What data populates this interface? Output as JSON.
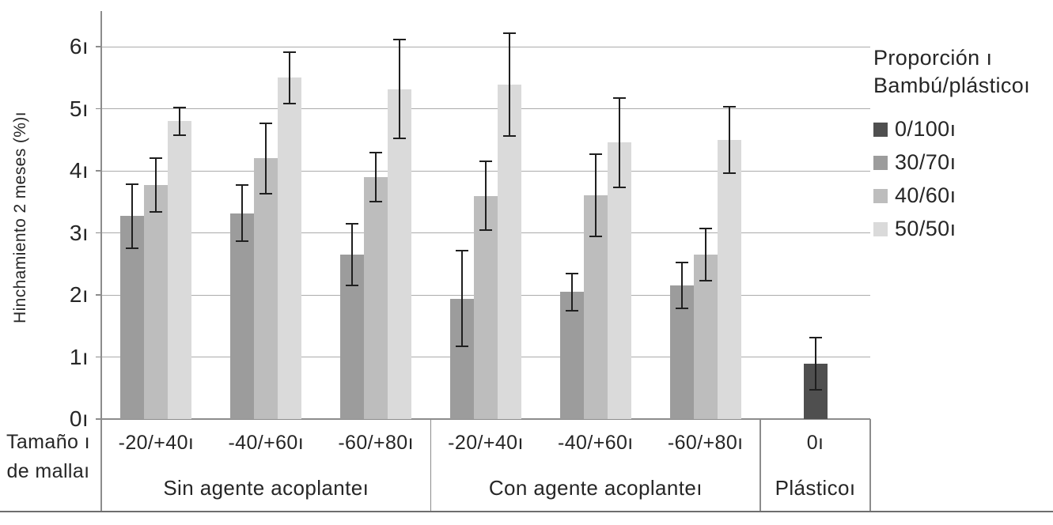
{
  "chart_data": {
    "type": "bar",
    "title": "",
    "ylabel": "Hinchamiento 2 meses (%)ı",
    "x_title_line1": "Tamaño ı",
    "x_title_line2": "de mallaı",
    "ylim": [
      0,
      6.5
    ],
    "y_max": 6.5,
    "yticks": [
      0,
      1,
      2,
      3,
      4,
      5,
      6
    ],
    "ytick_labels": [
      "0ı",
      "1ı",
      "2ı",
      "3ı",
      "4ı",
      "5ı",
      "6ı"
    ],
    "grid": true,
    "legend_position": "right",
    "error_bars": true,
    "series_names": [
      "0/100",
      "30/70",
      "40/60",
      "50/50"
    ],
    "series_colors": {
      "0/100": "#4f4f4f",
      "30/70": "#9c9c9c",
      "40/60": "#bdbdbd",
      "50/50": "#dadada"
    },
    "colors": {
      "grid": "#ababab",
      "axis": "#8c8c8c",
      "baseline": "#6e6e6e",
      "error_bar": "#1f1f1f",
      "text": "#262626"
    },
    "legend": {
      "title_line1": "Proporción ı",
      "title_line2": "Bambú/plásticoı",
      "items": [
        {
          "series": "0/100",
          "label": "0/100ı"
        },
        {
          "series": "30/70",
          "label": "30/70ı"
        },
        {
          "series": "40/60",
          "label": "40/60ı"
        },
        {
          "series": "50/50",
          "label": "50/50ı"
        }
      ]
    },
    "sections": [
      {
        "label": "Sin agente acoplanteı",
        "groups": [
          {
            "label": "-20/+40ı",
            "bars": [
              {
                "series": "30/70",
                "value": 3.27,
                "err": 0.52
              },
              {
                "series": "40/60",
                "value": 3.77,
                "err": 0.43
              },
              {
                "series": "50/50",
                "value": 4.8,
                "err": 0.22
              }
            ]
          },
          {
            "label": "-40/+60ı",
            "bars": [
              {
                "series": "30/70",
                "value": 3.32,
                "err": 0.45
              },
              {
                "series": "40/60",
                "value": 4.2,
                "err": 0.57
              },
              {
                "series": "50/50",
                "value": 5.5,
                "err": 0.42
              }
            ]
          },
          {
            "label": "-60/+80ı",
            "bars": [
              {
                "series": "30/70",
                "value": 2.65,
                "err": 0.5
              },
              {
                "series": "40/60",
                "value": 3.9,
                "err": 0.4
              },
              {
                "series": "50/50",
                "value": 5.32,
                "err": 0.8
              }
            ]
          }
        ]
      },
      {
        "label": "Con agente acoplanteı",
        "groups": [
          {
            "label": "-20/+40ı",
            "bars": [
              {
                "series": "30/70",
                "value": 1.94,
                "err": 0.77
              },
              {
                "series": "40/60",
                "value": 3.6,
                "err": 0.56
              },
              {
                "series": "50/50",
                "value": 5.39,
                "err": 0.83
              }
            ]
          },
          {
            "label": "-40/+60ı",
            "bars": [
              {
                "series": "30/70",
                "value": 2.05,
                "err": 0.3
              },
              {
                "series": "40/60",
                "value": 3.61,
                "err": 0.66
              },
              {
                "series": "50/50",
                "value": 4.46,
                "err": 0.72
              }
            ]
          },
          {
            "label": "-60/+80ı",
            "bars": [
              {
                "series": "30/70",
                "value": 2.15,
                "err": 0.37
              },
              {
                "series": "40/60",
                "value": 2.65,
                "err": 0.42
              },
              {
                "series": "50/50",
                "value": 4.5,
                "err": 0.53
              }
            ]
          }
        ]
      },
      {
        "label": "Plásticoı",
        "groups": [
          {
            "label": "0ı",
            "bars": [
              {
                "series": "0/100",
                "value": 0.89,
                "err": 0.42
              }
            ]
          }
        ]
      }
    ]
  }
}
